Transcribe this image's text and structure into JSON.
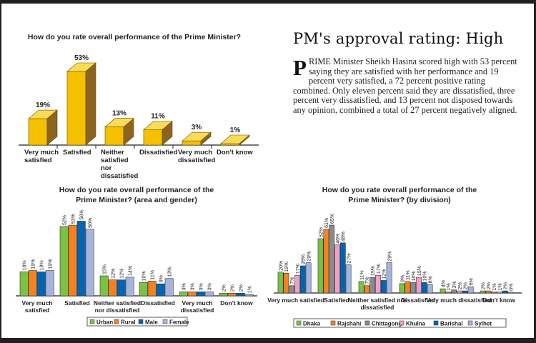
{
  "article": {
    "headline": "PM's approval rating: High",
    "drop_cap": "P",
    "body": "RIME Minister Sheikh Hasina scored high with 53 percent saying they are satisfied with her performance and 19 percent very satisfied, a 72 percent positive rating combined. Only eleven percent said they are dissatisfied, three percent very dissatisfied, and 13 percent not disposed towards any opinion, combined a total of 27 percent negatively aligned."
  },
  "chart_data": [
    {
      "type": "bar",
      "style": "3d",
      "title": "How do you rate overall performance of the Prime Minister?",
      "categories": [
        "Very much satisfied",
        "Satisfied",
        "Neither satisfied nor dissatisfied",
        "Dissatisfied",
        "Very much dissatisfied",
        "Don't know"
      ],
      "values": [
        19,
        53,
        13,
        11,
        3,
        1
      ],
      "value_labels": [
        "19%",
        "53%",
        "13%",
        "11%",
        "3%",
        "1%"
      ],
      "color": "#f5c000",
      "ylim": [
        0,
        55
      ]
    },
    {
      "type": "bar",
      "title": "How do you rate overall performance of the Prime Minister? (area and gender)",
      "categories": [
        "Very much satisfied",
        "Satisfied",
        "Neither satisfied nor dissatisfied",
        "Dissatisfied",
        "Very much dissatisfied",
        "Don't know"
      ],
      "series": [
        {
          "name": "Urban",
          "color": "#7cc243",
          "values": [
            18,
            52,
            15,
            10,
            3,
            2
          ],
          "labels": [
            "18%",
            "52%",
            "15%",
            "10%",
            "3%",
            "2%"
          ]
        },
        {
          "name": "Rural",
          "color": "#f58220",
          "values": [
            19,
            53,
            12,
            11,
            3,
            2
          ],
          "labels": [
            "19%",
            "53%",
            "12%",
            "11%",
            "3%",
            "2%"
          ]
        },
        {
          "name": "Male",
          "color": "#0066b3",
          "values": [
            18,
            56,
            12,
            9,
            3,
            2
          ],
          "labels": [
            "18%",
            "56%",
            "12%",
            "9%",
            "3%",
            "2%"
          ]
        },
        {
          "name": "Female",
          "color": "#a5b4dc",
          "values": [
            19,
            50,
            14,
            13,
            3,
            1
          ],
          "labels": [
            "19%",
            "50%",
            "14%",
            "13%",
            "3%",
            "1%"
          ]
        }
      ],
      "ylim": [
        0,
        60
      ],
      "legend": "bottom"
    },
    {
      "type": "bar",
      "title": "How do you rate overall performance of the Prime Minister? (by division)",
      "categories": [
        "Very much satisfied",
        "Satisfied",
        "Neither satisfied nor dissatisfied",
        "Dissatisfied",
        "Very much dissatisfied",
        "Don't know"
      ],
      "series": [
        {
          "name": "Dhaka",
          "color": "#7cc243",
          "values": [
            20,
            52,
            11,
            9,
            4,
            2
          ],
          "labels": [
            "20%",
            "52%",
            "11%",
            "9%",
            "4%",
            "2%"
          ]
        },
        {
          "name": "Rajshahi",
          "color": "#f58220",
          "values": [
            19,
            61,
            7,
            11,
            1,
            2
          ],
          "labels": [
            "19%",
            "61%",
            "7%",
            "11%",
            "1%",
            "2%"
          ]
        },
        {
          "name": "Chittagong",
          "color": "#8a8c8e",
          "values": [
            7,
            65,
            15,
            10,
            3,
            1
          ],
          "labels": [
            "7%",
            "65%",
            "15%",
            "10%",
            "3%",
            "1%"
          ]
        },
        {
          "name": "Khulna",
          "color": "#f29fc5",
          "values": [
            17,
            46,
            17,
            15,
            2,
            1
          ],
          "labels": [
            "17%",
            "46%",
            "17%",
            "15%",
            "2%",
            "1%"
          ]
        },
        {
          "name": "Barishal",
          "color": "#0066b3",
          "values": [
            26,
            48,
            12,
            10,
            2,
            2
          ],
          "labels": [
            "26%",
            "48%",
            "12%",
            "10%",
            "2%",
            "2%"
          ]
        },
        {
          "name": "Sylhet",
          "color": "#a5b4dc",
          "values": [
            29,
            27,
            29,
            8,
            6,
            0
          ],
          "labels": [
            "29%",
            "27%",
            "29%",
            "8%",
            "6%",
            "0%"
          ]
        }
      ],
      "ylim": [
        0,
        68
      ],
      "legend": "bottom"
    }
  ]
}
